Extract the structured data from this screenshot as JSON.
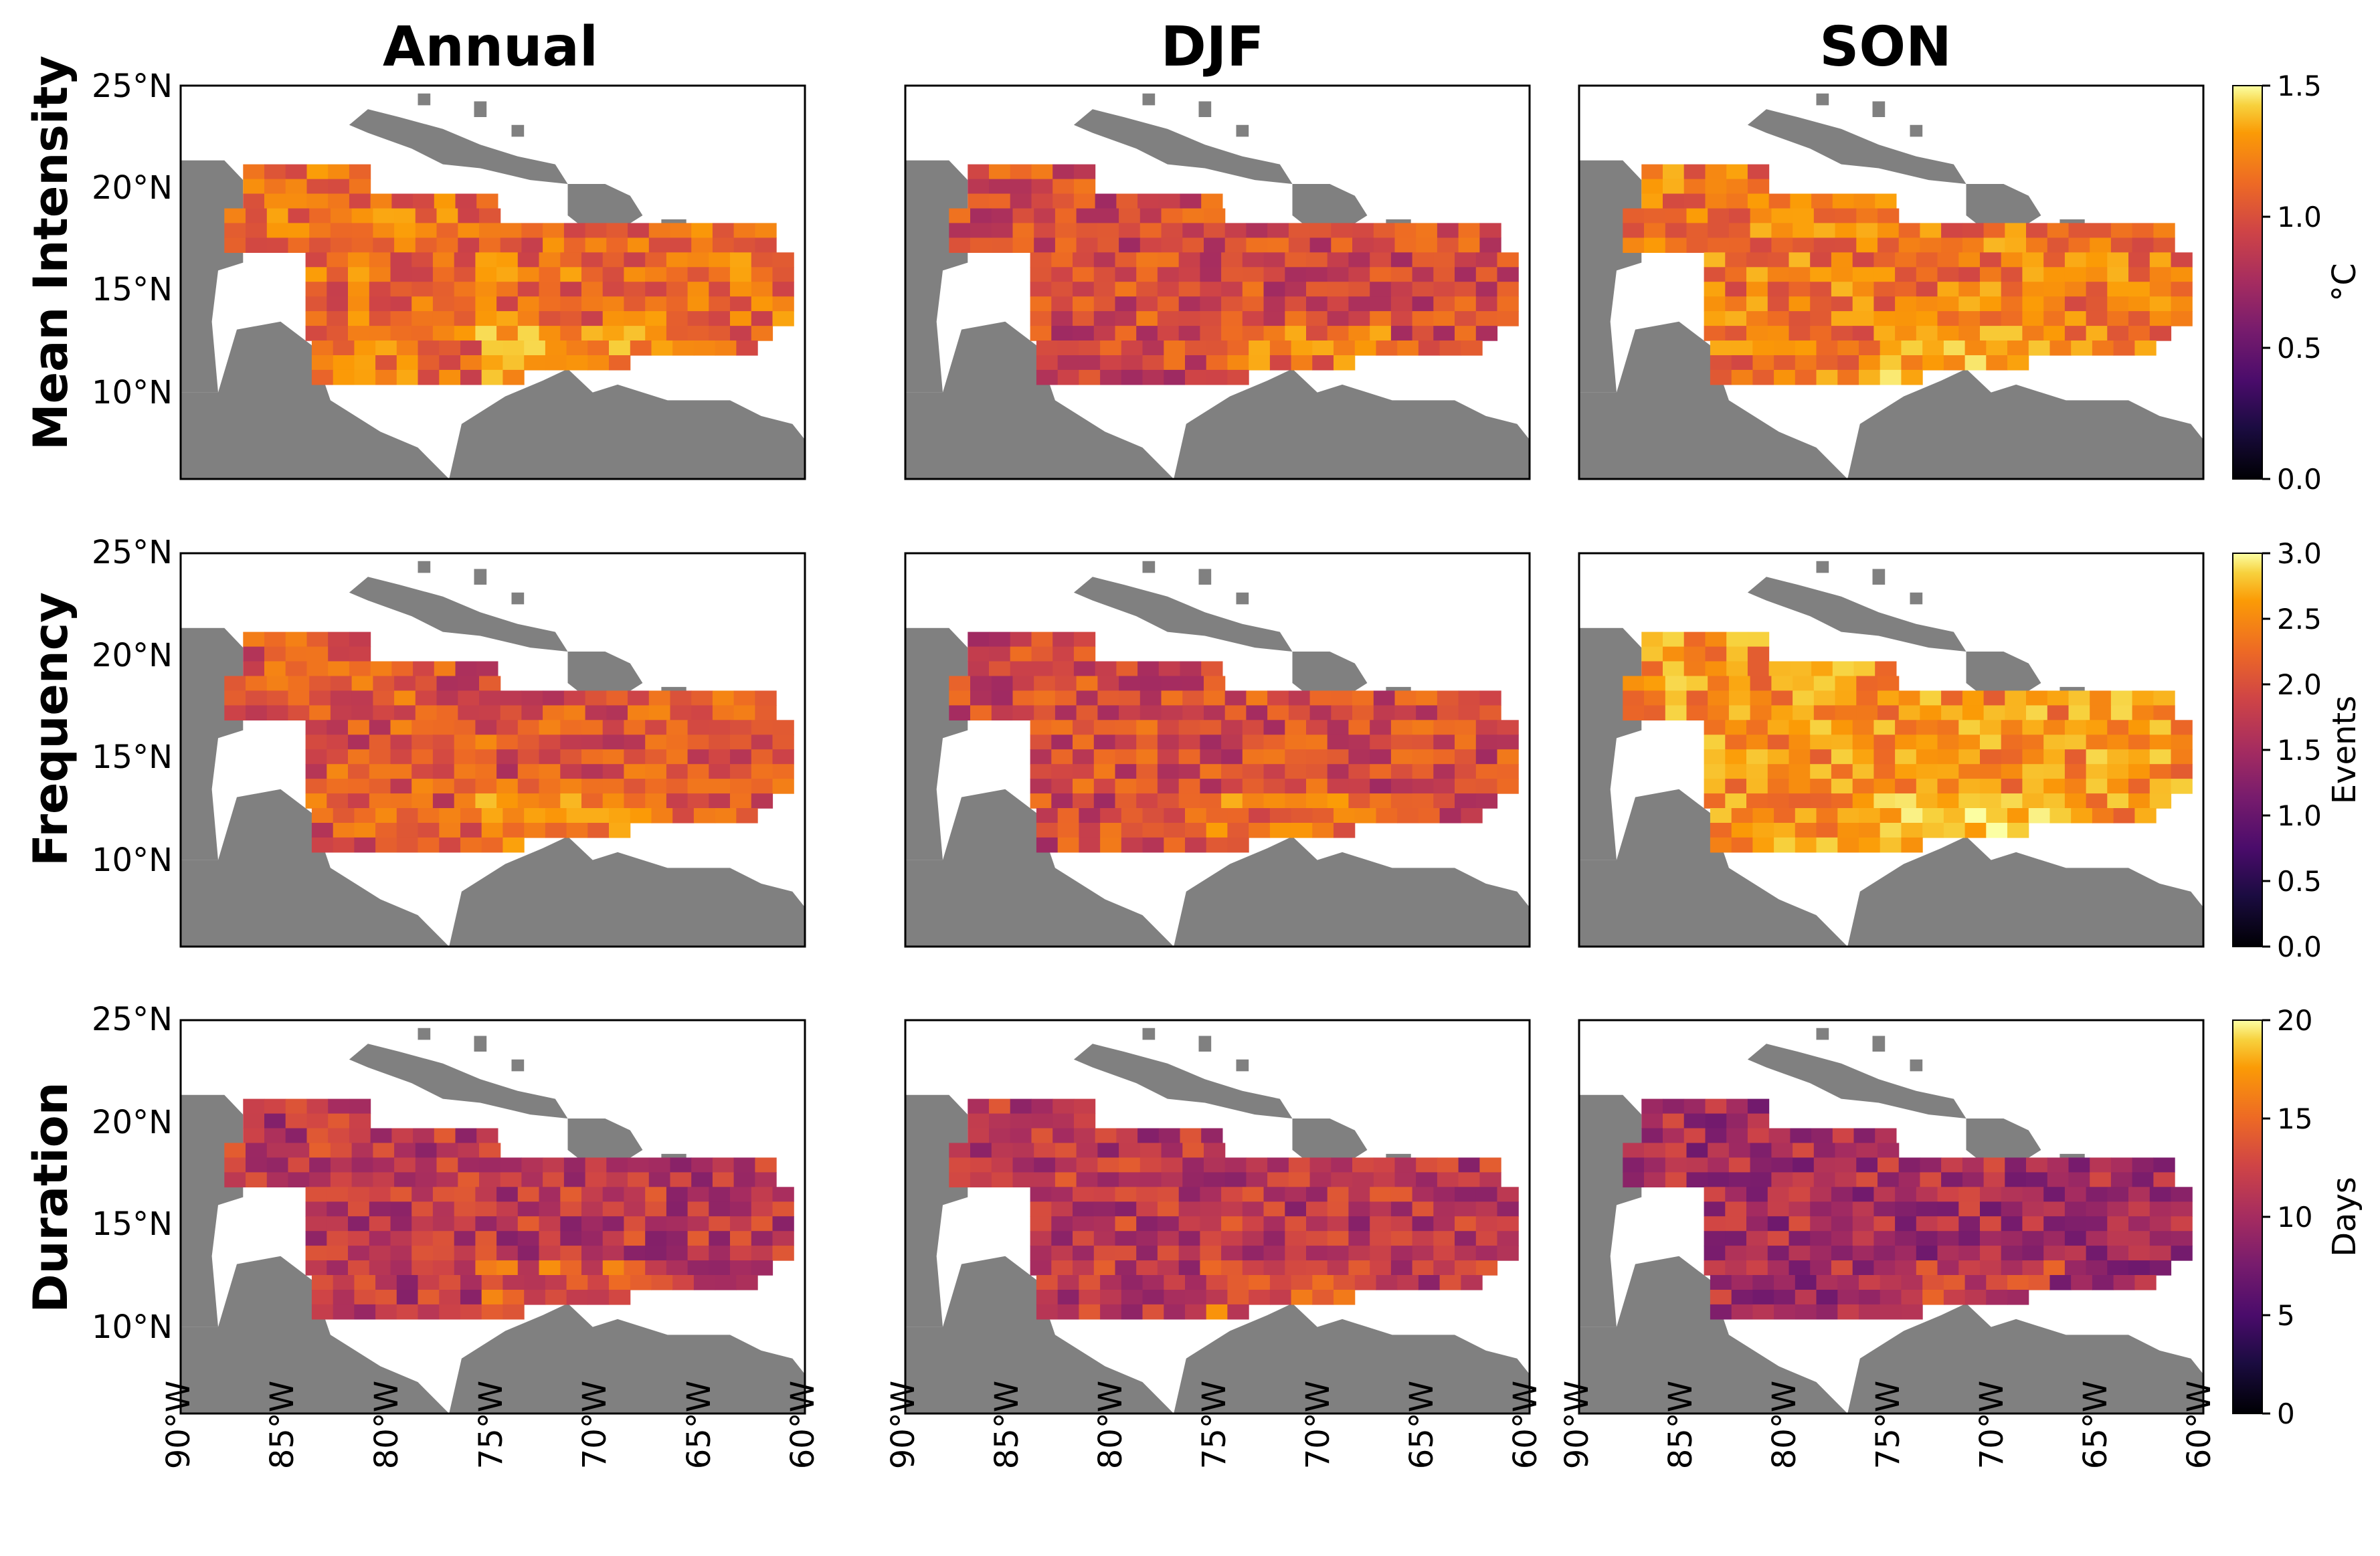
{
  "figure": {
    "columns": [
      "Annual",
      "DJF",
      "SON"
    ],
    "rows": [
      {
        "title": "Mean Intensity",
        "colorbar_label": "°C",
        "colorbar_ticks": [
          "0.0",
          "0.5",
          "1.0",
          "1.5"
        ],
        "range": [
          0,
          1.5
        ]
      },
      {
        "title": "Frequency",
        "colorbar_label": "Events",
        "colorbar_ticks": [
          "0.0",
          "0.5",
          "1.0",
          "1.5",
          "2.0",
          "2.5",
          "3.0"
        ],
        "range": [
          0,
          3
        ]
      },
      {
        "title": "Duration",
        "colorbar_label": "Days",
        "colorbar_ticks": [
          "0",
          "5",
          "10",
          "15",
          "20"
        ],
        "range": [
          0,
          20
        ]
      }
    ],
    "lat_ticks": [
      "25°N",
      "20°N",
      "15°N",
      "10°N"
    ],
    "lon_ticks": [
      "90°W",
      "85°W",
      "80°W",
      "75°W",
      "70°W",
      "65°W",
      "60°W"
    ],
    "colormap": "inferno",
    "land_color": "#808080",
    "ocean_color": "#ffffff",
    "mean_values": {
      "Mean Intensity": {
        "Annual": 1.0,
        "DJF": 0.85,
        "SON": 1.05
      },
      "Frequency": {
        "Annual": 1.8,
        "DJF": 1.7,
        "SON": 2.3
      },
      "Duration": {
        "Annual": 10,
        "DJF": 10,
        "SON": 9
      }
    }
  }
}
